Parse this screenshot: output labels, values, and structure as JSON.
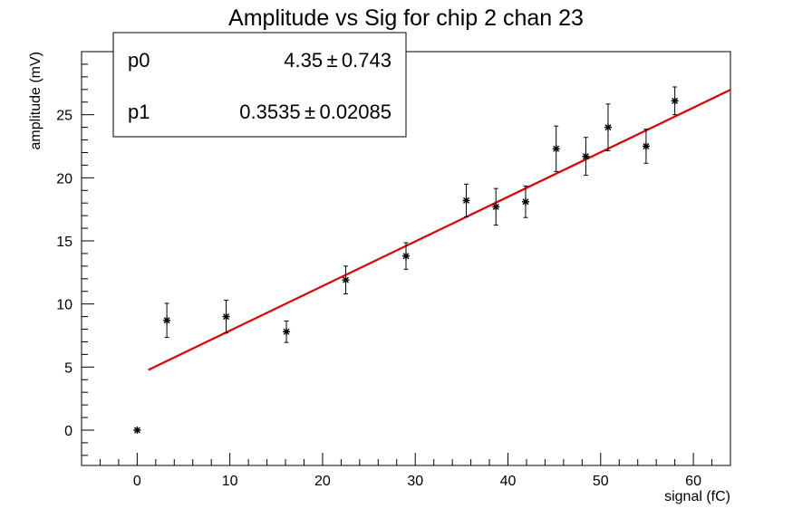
{
  "chart_data": {
    "type": "scatter",
    "title": "Amplitude vs Sig for chip 2 chan 23",
    "xlabel": "signal (fC)",
    "ylabel": "amplitude (mV)",
    "xlim": [
      -6,
      64
    ],
    "ylim": [
      -2.8,
      30
    ],
    "xticks": [
      0,
      10,
      20,
      30,
      40,
      50,
      60
    ],
    "yticks": [
      0,
      5,
      10,
      15,
      20,
      25
    ],
    "grid": false,
    "points": [
      {
        "x": 0,
        "y": 0.0,
        "err": 0.0
      },
      {
        "x": 3.2,
        "y": 8.7,
        "err": 1.35
      },
      {
        "x": 9.6,
        "y": 9.0,
        "err": 1.3
      },
      {
        "x": 16.1,
        "y": 7.8,
        "err": 0.85
      },
      {
        "x": 22.5,
        "y": 11.9,
        "err": 1.1
      },
      {
        "x": 29.0,
        "y": 13.8,
        "err": 1.05
      },
      {
        "x": 35.5,
        "y": 18.2,
        "err": 1.3
      },
      {
        "x": 38.7,
        "y": 17.7,
        "err": 1.45
      },
      {
        "x": 41.9,
        "y": 18.1,
        "err": 1.25
      },
      {
        "x": 45.2,
        "y": 22.3,
        "err": 1.8
      },
      {
        "x": 48.4,
        "y": 21.7,
        "err": 1.5
      },
      {
        "x": 50.8,
        "y": 24.0,
        "err": 1.85
      },
      {
        "x": 54.9,
        "y": 22.5,
        "err": 1.35
      },
      {
        "x": 58.0,
        "y": 26.1,
        "err": 1.1
      }
    ],
    "fit": {
      "p0": 4.35,
      "p1": 0.3535,
      "x_range": [
        1.2,
        64
      ],
      "color": "#e00000"
    },
    "stats_box": [
      {
        "name": "p0",
        "value": "4.35 ± 0.743"
      },
      {
        "name": "p1",
        "value": "0.3535 ± 0.02085"
      }
    ]
  }
}
